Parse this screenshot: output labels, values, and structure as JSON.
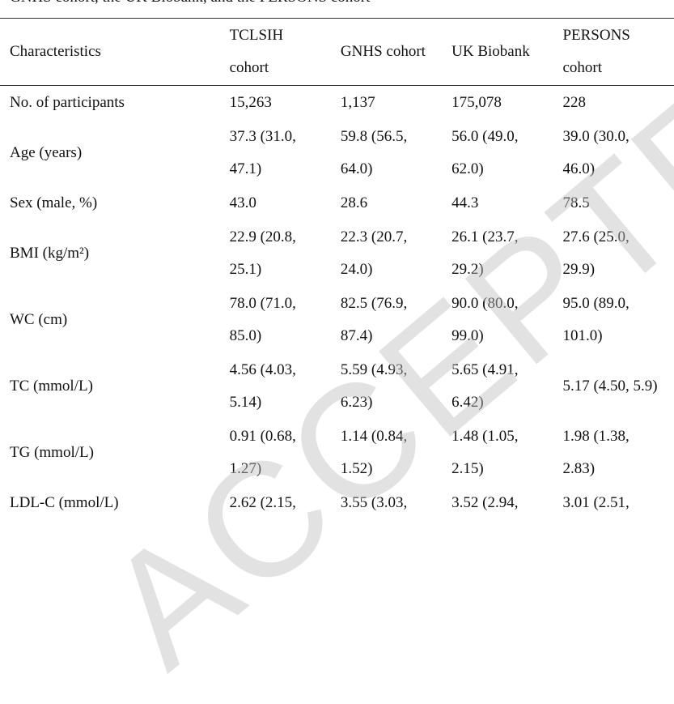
{
  "caption": "GNHS cohort, the UK Biobank, and the PERSONS cohort",
  "watermark": "ACCEPTED",
  "table": {
    "header": [
      "Characteristics",
      "TCLSIH cohort",
      "GNHS cohort",
      "UK Biobank",
      "PERSONS cohort"
    ],
    "rows": [
      [
        "No. of participants",
        "15,263",
        "1,137",
        "175,078",
        "228"
      ],
      [
        "Age (years)",
        "37.3 (31.0, 47.1)",
        "59.8 (56.5, 64.0)",
        "56.0 (49.0, 62.0)",
        "39.0 (30.0, 46.0)"
      ],
      [
        "Sex (male, %)",
        "43.0",
        "28.6",
        "44.3",
        "78.5"
      ],
      [
        "BMI (kg/m²)",
        "22.9 (20.8, 25.1)",
        "22.3 (20.7, 24.0)",
        "26.1 (23.7, 29.2)",
        "27.6 (25.0, 29.9)"
      ],
      [
        "WC (cm)",
        "78.0 (71.0, 85.0)",
        "82.5 (76.9, 87.4)",
        "90.0 (80.0, 99.0)",
        "95.0 (89.0, 101.0)"
      ],
      [
        "TC (mmol/L)",
        "4.56 (4.03, 5.14)",
        "5.59 (4.93, 6.23)",
        "5.65 (4.91, 6.42)",
        "5.17 (4.50, 5.9)"
      ],
      [
        "TG (mmol/L)",
        "0.91 (0.68, 1.27)",
        "1.14 (0.84, 1.52)",
        "1.48 (1.05, 2.15)",
        "1.98 (1.38, 2.83)"
      ],
      [
        "LDL-C (mmol/L)",
        "2.62 (2.15,",
        "3.55 (3.03,",
        "3.52 (2.94,",
        "3.01 (2.51,"
      ]
    ]
  }
}
